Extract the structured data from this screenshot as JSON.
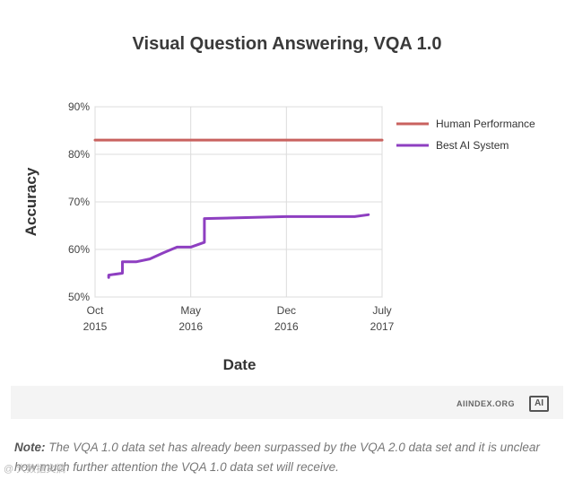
{
  "chart_data": {
    "type": "line",
    "title": "Visual Question Answering, VQA 1.0",
    "xlabel": "Date",
    "ylabel": "Accuracy",
    "ylim": [
      50,
      90
    ],
    "yticks": [
      {
        "value": 50,
        "label": "50%"
      },
      {
        "value": 60,
        "label": "60%"
      },
      {
        "value": 70,
        "label": "70%"
      },
      {
        "value": 80,
        "label": "80%"
      },
      {
        "value": 90,
        "label": "90%"
      }
    ],
    "xlim": [
      "2015-10",
      "2017-07"
    ],
    "xticks": [
      {
        "value": "2015-10",
        "label1": "Oct",
        "label2": "2015"
      },
      {
        "value": "2016-05",
        "label1": "May",
        "label2": "2016"
      },
      {
        "value": "2016-12",
        "label1": "Dec",
        "label2": "2016"
      },
      {
        "value": "2017-07",
        "label1": "July",
        "label2": "2017"
      }
    ],
    "grid": true,
    "legend_position": "right",
    "series": [
      {
        "name": "Human Performance",
        "color": "#c9625f",
        "points": [
          [
            "2015-10",
            83.0
          ],
          [
            "2017-07",
            83.0
          ]
        ]
      },
      {
        "name": "Best AI System",
        "color": "#8e3fc1",
        "points": [
          [
            "2015-11",
            54.1
          ],
          [
            "2015-11",
            54.6
          ],
          [
            "2015-12",
            55.0
          ],
          [
            "2015-12",
            57.4
          ],
          [
            "2016-01",
            57.4
          ],
          [
            "2016-02",
            58.0
          ],
          [
            "2016-03",
            59.3
          ],
          [
            "2016-04",
            60.5
          ],
          [
            "2016-05",
            60.5
          ],
          [
            "2016-06",
            61.5
          ],
          [
            "2016-06",
            62.2
          ],
          [
            "2016-06",
            66.5
          ],
          [
            "2016-12",
            66.9
          ],
          [
            "2017-05",
            66.9
          ],
          [
            "2017-06",
            67.3
          ]
        ]
      }
    ]
  },
  "source": "AIINDEX.ORG",
  "logo_text": "AI",
  "note": {
    "label": "Note:",
    "text": "The VQA 1.0 data set has already been surpassed by the VQA 2.0 data set and it is unclear how much further attention the VQA 1.0 data set will receive."
  },
  "watermark": "@ 大数据文摘"
}
